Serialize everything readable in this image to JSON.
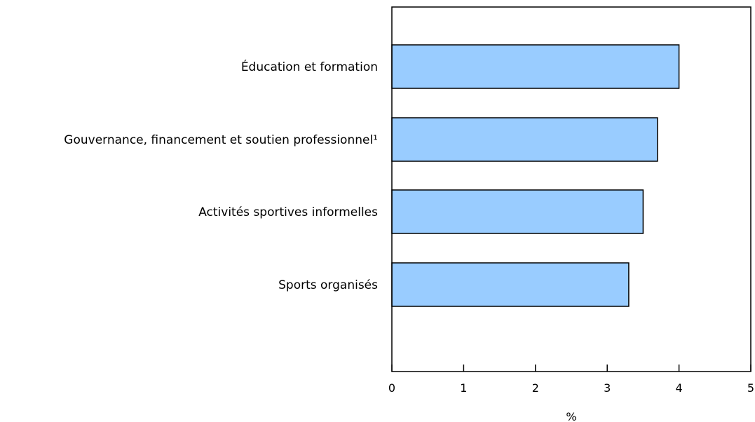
{
  "chart_data": {
    "type": "bar",
    "orientation": "horizontal",
    "categories": [
      "Éducation et formation",
      "Gouvernance, financement et soutien professionnel¹",
      "Activités sportives informelles",
      "Sports organisés"
    ],
    "values": [
      4.0,
      3.7,
      3.5,
      3.3
    ],
    "title": "",
    "xlabel": "%",
    "ylabel": "",
    "xlim": [
      0,
      5
    ],
    "x_ticks": [
      "0",
      "1",
      "2",
      "3",
      "4",
      "5"
    ],
    "grid": false,
    "legend": "none",
    "colors": {
      "bar_fill": "#99ccff",
      "bar_stroke": "#000000",
      "axis": "#000000"
    }
  }
}
